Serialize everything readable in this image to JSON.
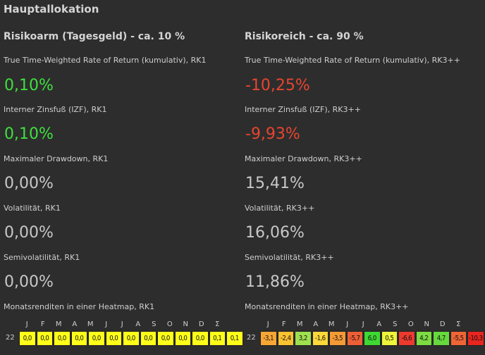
{
  "title": "Hauptallokation",
  "left": {
    "title": "Risikoarm (Tagesgeld) - ca. 10 %",
    "twr_label": "True Time-Weighted Rate of Return (kumulativ), RK1",
    "twr_value": "0,10%",
    "izf_label": "Interner Zinsfuß (IZF), RK1",
    "izf_value": "0,10%",
    "mdd_label": "Maximaler Drawdown, RK1",
    "mdd_value": "0,00%",
    "vol_label": "Volatilität, RK1",
    "vol_value": "0,00%",
    "svol_label": "Semivolatilität, RK1",
    "svol_value": "0,00%",
    "heatmap_label": "Monatsrenditen in einer Heatmap, RK1",
    "heatmap": {
      "year": "22",
      "months": [
        "J",
        "F",
        "M",
        "A",
        "M",
        "J",
        "J",
        "A",
        "S",
        "O",
        "N",
        "D",
        "Σ"
      ],
      "cells": [
        {
          "v": "0,0",
          "c": "#ffff1a"
        },
        {
          "v": "0,0",
          "c": "#ffff1a"
        },
        {
          "v": "0,0",
          "c": "#ffff1a"
        },
        {
          "v": "0,0",
          "c": "#ffff1a"
        },
        {
          "v": "0,0",
          "c": "#ffff1a"
        },
        {
          "v": "0,0",
          "c": "#ffff1a"
        },
        {
          "v": "0,0",
          "c": "#ffff1a"
        },
        {
          "v": "0,0",
          "c": "#ffff1a"
        },
        {
          "v": "0,0",
          "c": "#ffff1a"
        },
        {
          "v": "0,0",
          "c": "#ffff1a"
        },
        {
          "v": "0,0",
          "c": "#ffff1a"
        },
        {
          "v": "0,1",
          "c": "#ffff1a"
        },
        {
          "v": "0,1",
          "c": "#ffff1a"
        }
      ]
    }
  },
  "right": {
    "title": "Risikoreich - ca. 90 %",
    "twr_label": "True Time-Weighted Rate of Return (kumulativ), RK3++",
    "twr_value": "-10,25%",
    "izf_label": "Interner Zinsfuß (IZF), RK3++",
    "izf_value": "-9,93%",
    "mdd_label": "Maximaler Drawdown, RK3++",
    "mdd_value": "15,41%",
    "vol_label": "Volatilität, RK3++",
    "vol_value": "16,06%",
    "svol_label": "Semivolatilität, RK3++",
    "svol_value": "11,86%",
    "heatmap_label": "Monatsrenditen in einer Heatmap, RK3++",
    "heatmap": {
      "year": "22",
      "months": [
        "J",
        "F",
        "M",
        "A",
        "M",
        "J",
        "J",
        "A",
        "S",
        "O",
        "N",
        "D",
        "Σ"
      ],
      "cells": [
        {
          "v": "-3,1",
          "c": "#f7a635"
        },
        {
          "v": "-2,4",
          "c": "#f9c231"
        },
        {
          "v": "3,2",
          "c": "#9fe050"
        },
        {
          "v": "-1,6",
          "c": "#fcd83a"
        },
        {
          "v": "-3,5",
          "c": "#f59a35"
        },
        {
          "v": "-5,7",
          "c": "#ef5f35"
        },
        {
          "v": "6,0",
          "c": "#3ed933"
        },
        {
          "v": "0,5",
          "c": "#eef53a"
        },
        {
          "v": "-6,6",
          "c": "#ec3a2f"
        },
        {
          "v": "4,2",
          "c": "#7cdc42"
        },
        {
          "v": "4,7",
          "c": "#66d93d"
        },
        {
          "v": "-5,5",
          "c": "#ef6535"
        },
        {
          "v": "-10,3",
          "c": "#e8251f"
        }
      ]
    }
  }
}
